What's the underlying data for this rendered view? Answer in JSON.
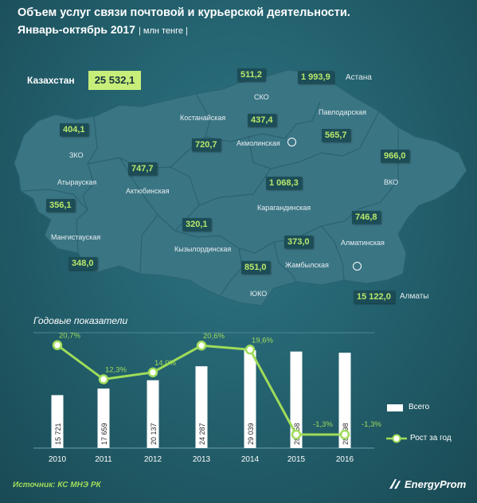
{
  "title": "Объем услуг связи почтовой и курьерской деятельности.",
  "period": "Январь-октябрь 2017",
  "unit": "| млн тенге |",
  "total": {
    "label": "Казахстан",
    "value": "25 532,1"
  },
  "regions": [
    {
      "name": "СКО",
      "value": "511,2"
    },
    {
      "name": "Астана",
      "value": "1 993,9"
    },
    {
      "name": "Павлодарская",
      "value": "565,7"
    },
    {
      "name": "Костанайская",
      "value": "720,7"
    },
    {
      "name": "Акмолинская",
      "value": "437,4"
    },
    {
      "name": "ЗКО",
      "value": "404,1"
    },
    {
      "name": "ВКО",
      "value": "966,0"
    },
    {
      "name": "Актюбинская",
      "value": "747,7"
    },
    {
      "name": "Атырауская",
      "value": "356,1"
    },
    {
      "name": "Карагандинская",
      "value": "1 068,3"
    },
    {
      "name": "Мангистауская",
      "value": "348,0"
    },
    {
      "name": "Кызылординская",
      "value": "320,1"
    },
    {
      "name": "Алматинская",
      "value": "746,8"
    },
    {
      "name": "Жамбылская",
      "value": "373,0"
    },
    {
      "name": "ЮКО",
      "value": "851,0"
    },
    {
      "name": "Алматы",
      "value": "15 122,0"
    }
  ],
  "annual_title": "Годовые показатели",
  "chart_data": {
    "type": "bar",
    "categories": [
      "2010",
      "2011",
      "2012",
      "2013",
      "2014",
      "2015",
      "2016"
    ],
    "series": [
      {
        "name": "Всего",
        "type": "bar",
        "values": [
          15721,
          17659,
          20137,
          24287,
          29039,
          28658,
          28298
        ],
        "labels": [
          "15 721",
          "17 659",
          "20 137",
          "24 287",
          "29 039",
          "28 658",
          "28 298"
        ]
      },
      {
        "name": "Рост за год",
        "type": "line",
        "values": [
          20.7,
          12.3,
          14.0,
          20.6,
          19.6,
          -1.3,
          -1.3
        ],
        "labels": [
          "20,7%",
          "12,3%",
          "14,0%",
          "20,6%",
          "19,6%",
          "-1,3%",
          "-1,3%"
        ]
      }
    ]
  },
  "source": "Источник: КС МНЭ РК",
  "brand": "EnergyProm",
  "colors": {
    "background": "#23606d",
    "map": "#3a7584",
    "accent": "#9fdc5a",
    "bar": "#ffffff",
    "total_box": "#c8ee7a"
  }
}
